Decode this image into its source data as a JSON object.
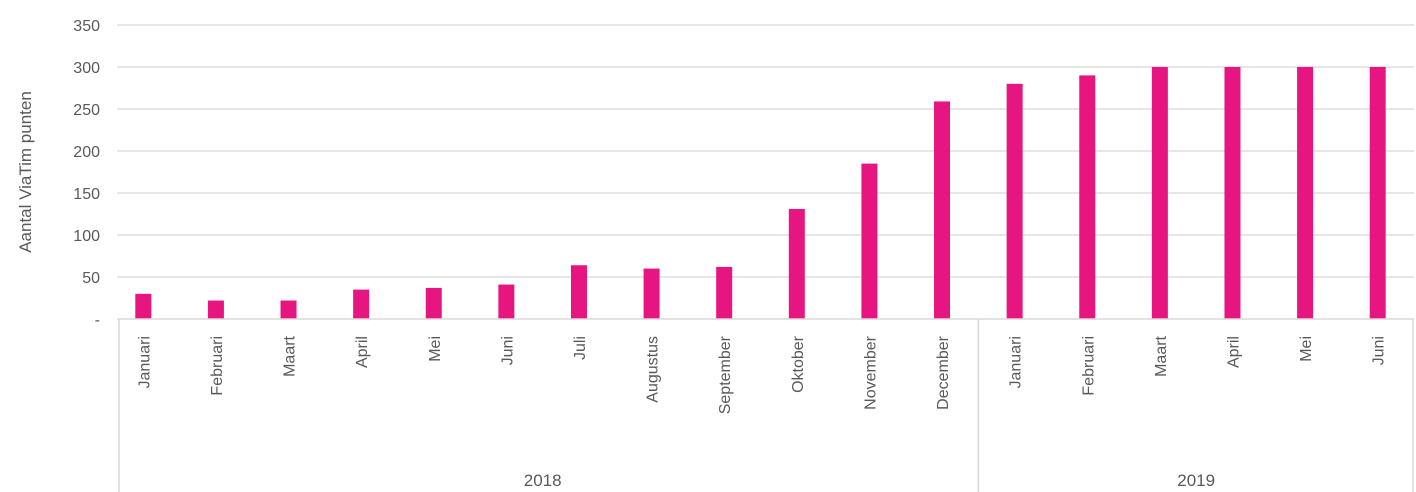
{
  "chart_data": {
    "type": "bar",
    "title": "",
    "xlabel": "",
    "ylabel": "Aantal ViaTim punten",
    "ylim": [
      0,
      350
    ],
    "yticks": [
      {
        "value": 0,
        "label": "-"
      },
      {
        "value": 50,
        "label": "50"
      },
      {
        "value": 100,
        "label": "100"
      },
      {
        "value": 150,
        "label": "150"
      },
      {
        "value": 200,
        "label": "200"
      },
      {
        "value": 250,
        "label": "250"
      },
      {
        "value": 300,
        "label": "300"
      },
      {
        "value": 350,
        "label": "350"
      }
    ],
    "grid": true,
    "bar_color": "#E6157F",
    "categories": [
      "Januari",
      "Februari",
      "Maart",
      "April",
      "Mei",
      "Juni",
      "Juli",
      "Augustus",
      "September",
      "Oktober",
      "November",
      "December",
      "Januari",
      "Februari",
      "Maart",
      "April",
      "Mei",
      "Juni"
    ],
    "groups": [
      {
        "label": "2018",
        "start": 0,
        "end": 11
      },
      {
        "label": "2019",
        "start": 12,
        "end": 17
      }
    ],
    "values": [
      30,
      22,
      22,
      35,
      37,
      41,
      64,
      60,
      62,
      131,
      185,
      259,
      280,
      290,
      300,
      300,
      300,
      300
    ]
  }
}
